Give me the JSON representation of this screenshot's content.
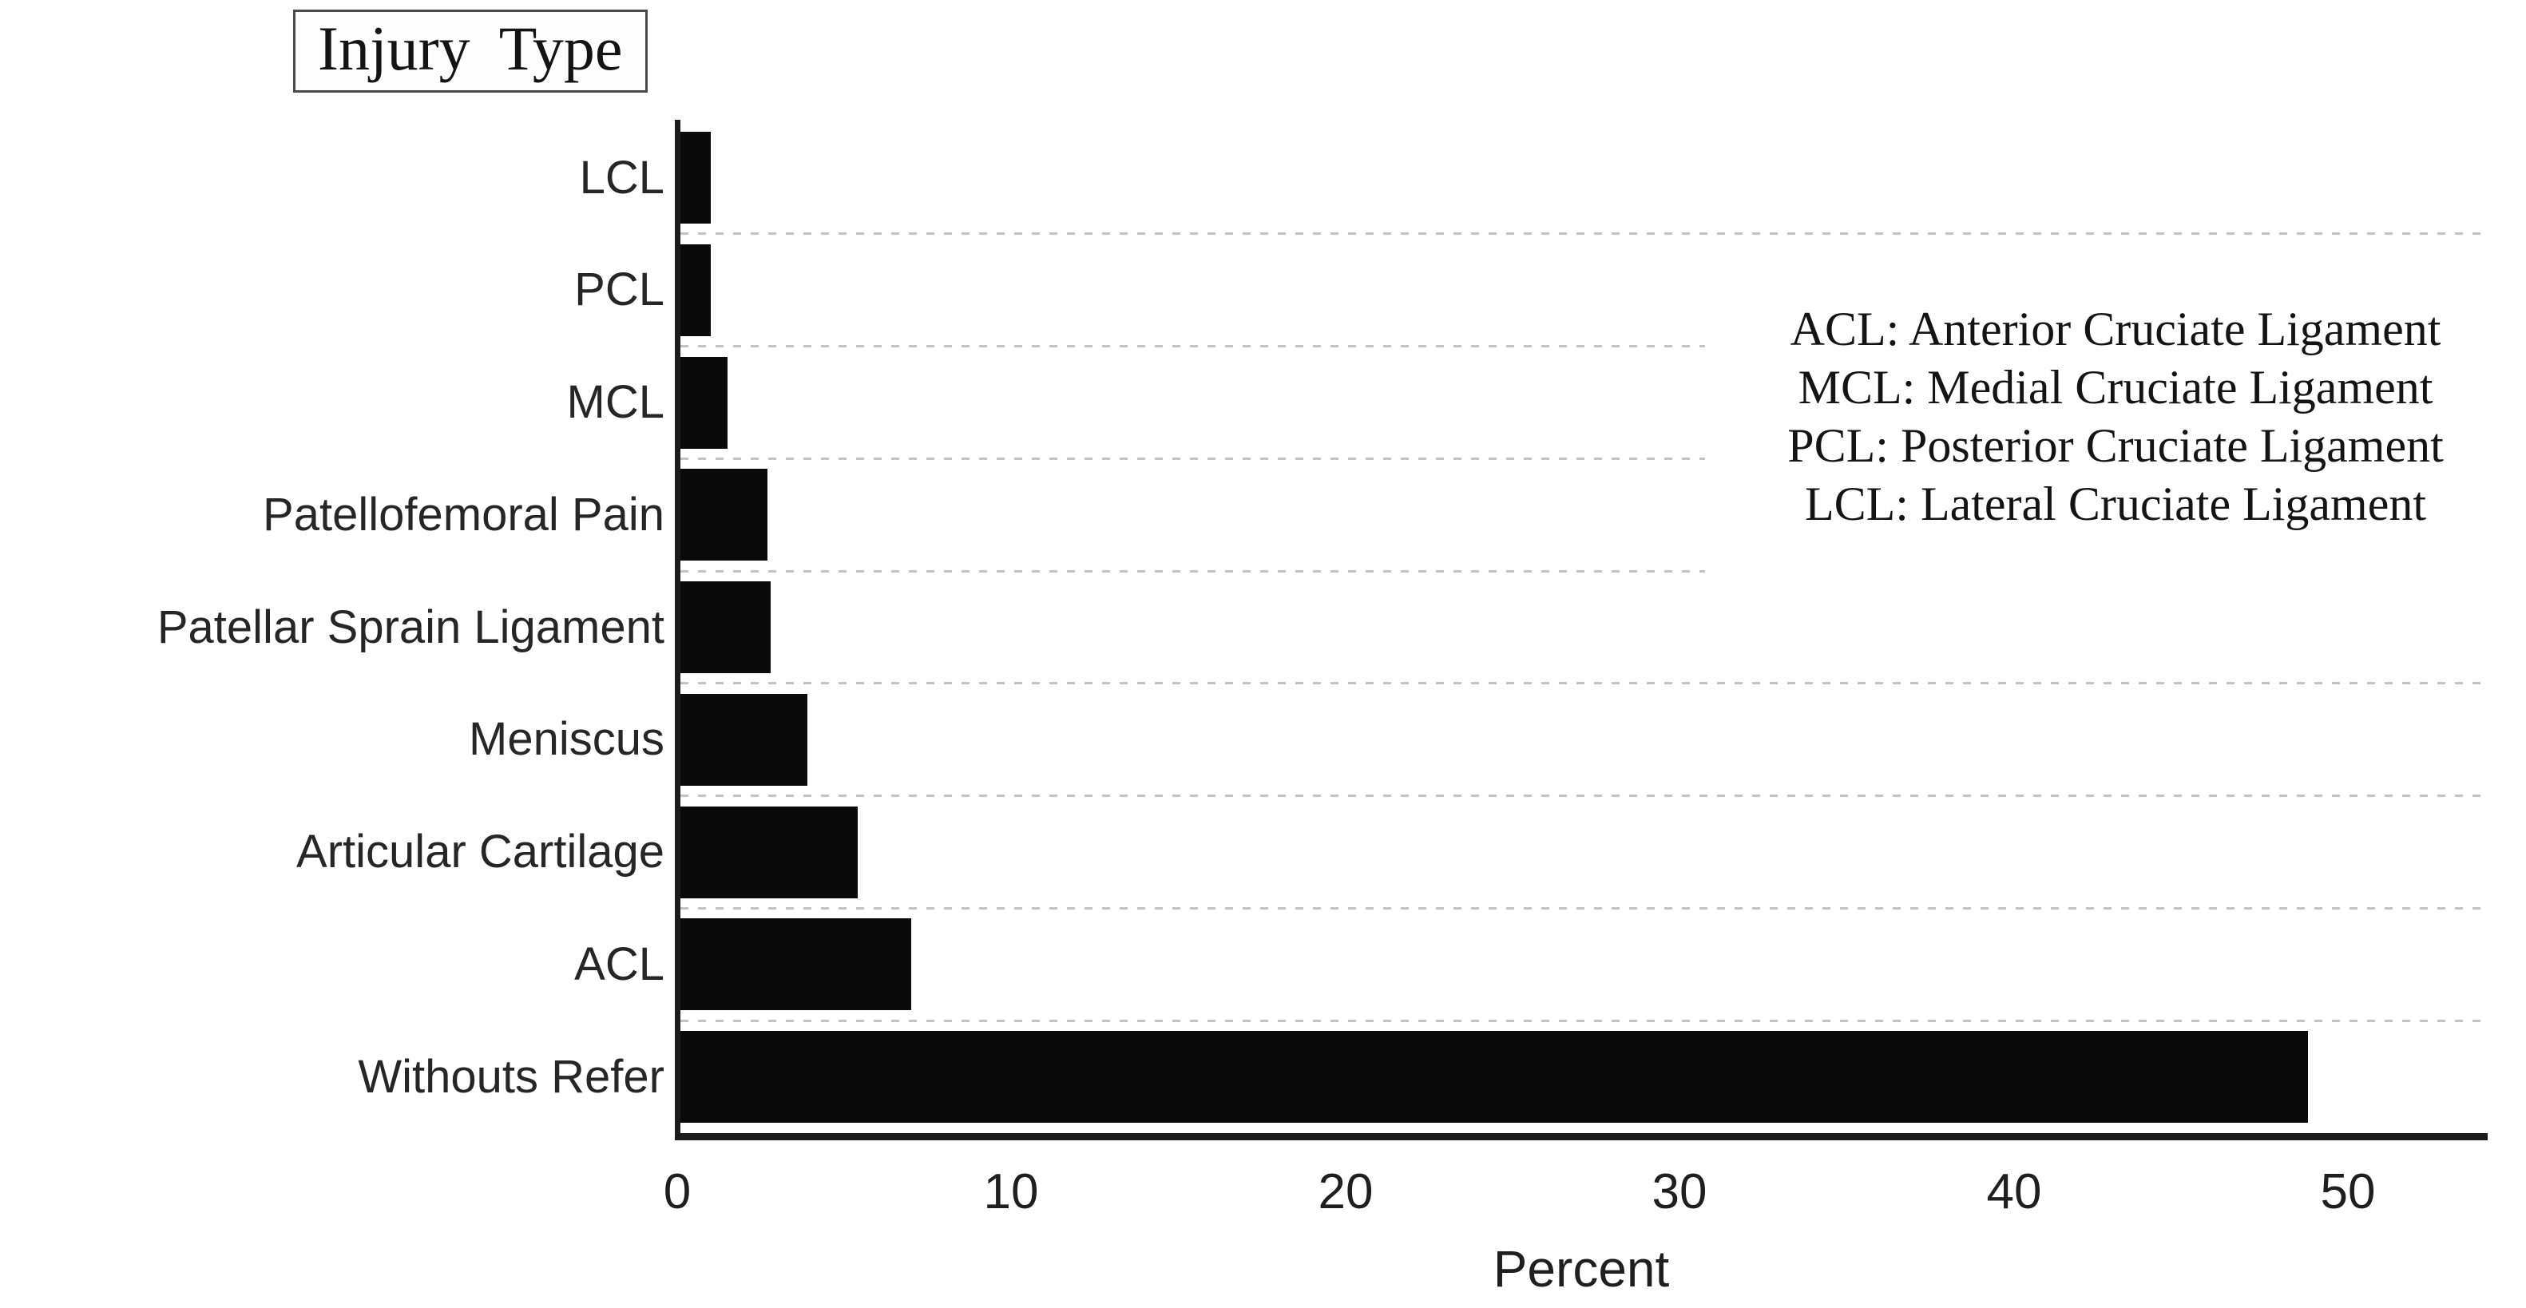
{
  "figure": {
    "title": "Injury Type",
    "xlabel": "Percent"
  },
  "chart_data": {
    "type": "bar",
    "orientation": "horizontal",
    "title": "Injury Type",
    "xlabel": "Percent",
    "ylabel": "",
    "categories": [
      "LCL",
      "PCL",
      "MCL",
      "Patellofemoral Pain",
      "Patellar Sprain Ligament",
      "Meniscus",
      "Articular Cartilage",
      "ACL",
      "Withouts Refer"
    ],
    "values": [
      1.0,
      1.0,
      1.5,
      2.7,
      2.8,
      3.9,
      5.4,
      7.0,
      48.8
    ],
    "xticks": [
      0,
      10,
      20,
      30,
      40,
      50
    ],
    "xlim": [
      0,
      54
    ],
    "grid": "dashed-horizontal-between-categories",
    "legend_position": "right-middle",
    "bar_color": "#0a0a0a"
  },
  "legend": {
    "lines": [
      "ACL: Anterior Cruciate Ligament",
      "MCL: Medial Cruciate Ligament",
      "PCL: Posterior Cruciate Ligament",
      "LCL: Lateral Cruciate Ligament"
    ]
  },
  "colors": {
    "background": "#ffffff",
    "bar": "#0a0a0a",
    "axis": "#1c1c1c",
    "text": "#262626",
    "gridline": "#c2c2c2",
    "title_border": "#4a4a4a"
  }
}
